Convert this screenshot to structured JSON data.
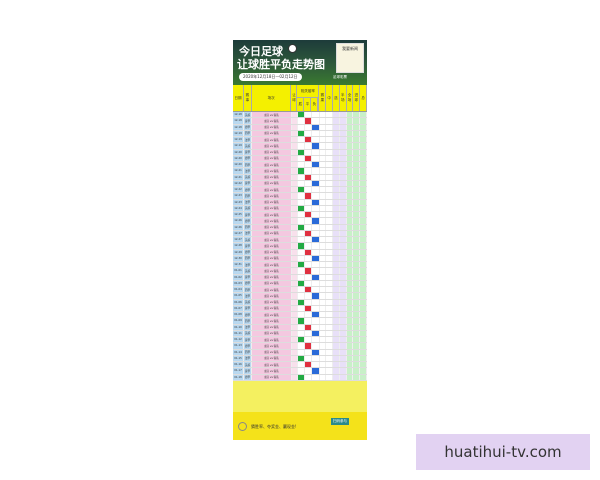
{
  "header": {
    "title1": "今日足球",
    "title2": "让球胜平负走势图",
    "date_range": "2020年12月18日—02月12日",
    "mascot_label": "我要新闻",
    "brand": "足球彩票"
  },
  "table_header": {
    "date": "日期",
    "league": "赛事",
    "match": "场次",
    "handicap": "让球",
    "odds_group": "相关赔率",
    "odds": [
      "胜",
      "平",
      "负"
    ],
    "extra": [
      "赛果",
      "中",
      "选",
      "半场",
      "全场",
      "进球",
      "总"
    ]
  },
  "rows": [
    [
      "12-18",
      "英超",
      "主队 vs 客队"
    ],
    [
      "12-18",
      "意甲",
      "主队 vs 客队"
    ],
    [
      "12-18",
      "德甲",
      "主队 vs 客队"
    ],
    [
      "12-19",
      "西甲",
      "主队 vs 客队"
    ],
    [
      "12-19",
      "法甲",
      "主队 vs 客队"
    ],
    [
      "12-19",
      "英超",
      "主队 vs 客队"
    ],
    [
      "12-20",
      "意甲",
      "主队 vs 客队"
    ],
    [
      "12-20",
      "德甲",
      "主队 vs 客队"
    ],
    [
      "12-20",
      "西甲",
      "主队 vs 客队"
    ],
    [
      "12-21",
      "法甲",
      "主队 vs 客队"
    ],
    [
      "12-21",
      "英超",
      "主队 vs 客队"
    ],
    [
      "12-22",
      "意甲",
      "主队 vs 客队"
    ],
    [
      "12-22",
      "德甲",
      "主队 vs 客队"
    ],
    [
      "12-23",
      "西甲",
      "主队 vs 客队"
    ],
    [
      "12-23",
      "法甲",
      "主队 vs 客队"
    ],
    [
      "12-24",
      "英超",
      "主队 vs 客队"
    ],
    [
      "12-25",
      "意甲",
      "主队 vs 客队"
    ],
    [
      "12-26",
      "德甲",
      "主队 vs 客队"
    ],
    [
      "12-26",
      "西甲",
      "主队 vs 客队"
    ],
    [
      "12-27",
      "法甲",
      "主队 vs 客队"
    ],
    [
      "12-27",
      "英超",
      "主队 vs 客队"
    ],
    [
      "12-28",
      "意甲",
      "主队 vs 客队"
    ],
    [
      "12-29",
      "德甲",
      "主队 vs 客队"
    ],
    [
      "12-30",
      "西甲",
      "主队 vs 客队"
    ],
    [
      "12-31",
      "法甲",
      "主队 vs 客队"
    ],
    [
      "01-01",
      "英超",
      "主队 vs 客队"
    ],
    [
      "01-02",
      "意甲",
      "主队 vs 客队"
    ],
    [
      "01-03",
      "德甲",
      "主队 vs 客队"
    ],
    [
      "01-04",
      "西甲",
      "主队 vs 客队"
    ],
    [
      "01-05",
      "法甲",
      "主队 vs 客队"
    ],
    [
      "01-06",
      "英超",
      "主队 vs 客队"
    ],
    [
      "01-07",
      "意甲",
      "主队 vs 客队"
    ],
    [
      "01-08",
      "德甲",
      "主队 vs 客队"
    ],
    [
      "01-09",
      "西甲",
      "主队 vs 客队"
    ],
    [
      "01-10",
      "法甲",
      "主队 vs 客队"
    ],
    [
      "01-11",
      "英超",
      "主队 vs 客队"
    ],
    [
      "01-12",
      "意甲",
      "主队 vs 客队"
    ],
    [
      "01-13",
      "德甲",
      "主队 vs 客队"
    ],
    [
      "01-14",
      "西甲",
      "主队 vs 客队"
    ],
    [
      "01-15",
      "法甲",
      "主队 vs 客队"
    ],
    [
      "01-16",
      "英超",
      "主队 vs 客队"
    ],
    [
      "01-17",
      "意甲",
      "主队 vs 客队"
    ],
    [
      "01-18",
      "德甲",
      "主队 vs 客队"
    ]
  ],
  "footer": {
    "slogan": "猜胜率、夺奖金、赢现金!",
    "qr_label": "扫码参与"
  },
  "watermark": "huatihui-tv.com",
  "colors": {
    "left_cols": "#b8d8f0",
    "match_col": "#f4c8e0",
    "right_cols": "#c8f0c8",
    "header": "#f4f000",
    "win": "#22aa44",
    "draw": "#2a6ad8",
    "loss": "#e03040"
  }
}
